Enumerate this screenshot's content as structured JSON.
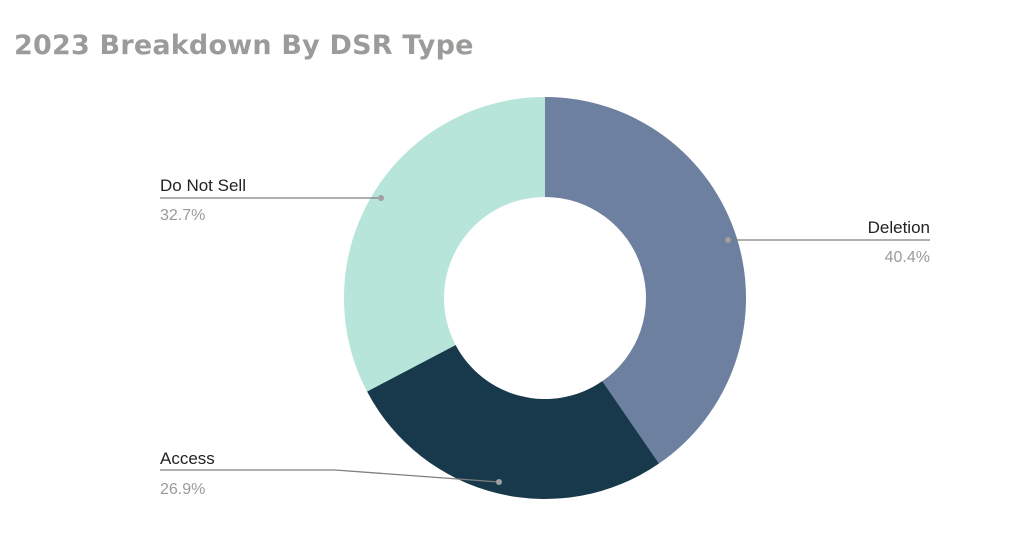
{
  "chart_data": {
    "type": "pie",
    "title": "2023 Breakdown By DSR Type",
    "donut": true,
    "slices": [
      {
        "label": "Deletion",
        "value": 40.4,
        "value_label": "40.4%",
        "color": "#6d80a0"
      },
      {
        "label": "Access",
        "value": 26.9,
        "value_label": "26.9%",
        "color": "#18394c"
      },
      {
        "label": "Do Not Sell",
        "value": 32.7,
        "value_label": "32.7%",
        "color": "#b7e5da"
      }
    ],
    "legend": "none",
    "start_angle": "top",
    "direction": "clockwise"
  }
}
